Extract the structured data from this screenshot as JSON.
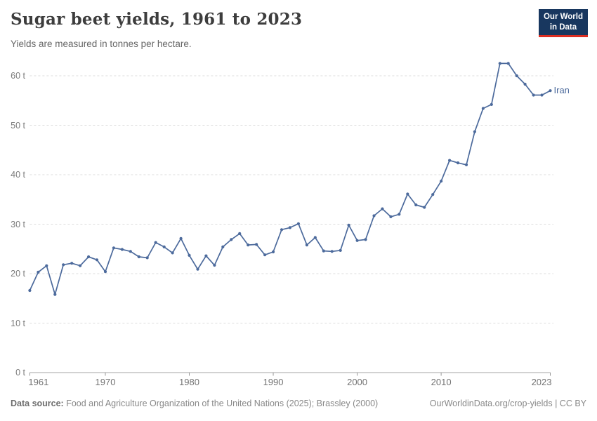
{
  "header": {
    "title": "Sugar beet yields, 1961 to 2023",
    "subtitle": "Yields are measured in tonnes per hectare.",
    "logo_line1": "Our World",
    "logo_line2": "in Data"
  },
  "chart_data": {
    "type": "line",
    "title": "Sugar beet yields, 1961 to 2023",
    "ylabel": "tonnes per hectare",
    "xlabel": "",
    "xlim": [
      1961,
      2023
    ],
    "ylim": [
      0,
      60
    ],
    "grid": "horizontal-dashed",
    "legend": "end-of-line-label",
    "x_ticks": [
      {
        "v": 1961,
        "label": "1961"
      },
      {
        "v": 1970,
        "label": "1970"
      },
      {
        "v": 1980,
        "label": "1980"
      },
      {
        "v": 1990,
        "label": "1990"
      },
      {
        "v": 2000,
        "label": "2000"
      },
      {
        "v": 2010,
        "label": "2010"
      },
      {
        "v": 2023,
        "label": "2023"
      }
    ],
    "y_ticks": [
      {
        "v": 0,
        "label": "0 t"
      },
      {
        "v": 10,
        "label": "10 t"
      },
      {
        "v": 20,
        "label": "20 t"
      },
      {
        "v": 30,
        "label": "30 t"
      },
      {
        "v": 40,
        "label": "40 t"
      },
      {
        "v": 50,
        "label": "50 t"
      },
      {
        "v": 60,
        "label": "60 t"
      }
    ],
    "series": [
      {
        "name": "Iran",
        "color": "#4C6A9C",
        "x": [
          1961,
          1962,
          1963,
          1964,
          1965,
          1966,
          1967,
          1968,
          1969,
          1970,
          1971,
          1972,
          1973,
          1974,
          1975,
          1976,
          1977,
          1978,
          1979,
          1980,
          1981,
          1982,
          1983,
          1984,
          1985,
          1986,
          1987,
          1988,
          1989,
          1990,
          1991,
          1992,
          1993,
          1994,
          1995,
          1996,
          1997,
          1998,
          1999,
          2000,
          2001,
          2002,
          2003,
          2004,
          2005,
          2006,
          2007,
          2008,
          2009,
          2010,
          2011,
          2012,
          2013,
          2014,
          2015,
          2016,
          2017,
          2018,
          2019,
          2020,
          2021,
          2022,
          2023
        ],
        "values": [
          16.6,
          20.3,
          21.6,
          15.8,
          21.8,
          22.1,
          21.6,
          23.4,
          22.8,
          20.4,
          25.2,
          24.9,
          24.5,
          23.4,
          23.2,
          26.3,
          25.4,
          24.2,
          27.1,
          23.7,
          20.9,
          23.6,
          21.7,
          25.4,
          26.9,
          28.1,
          25.8,
          25.9,
          23.8,
          24.4,
          28.9,
          29.3,
          30.1,
          25.8,
          27.3,
          24.6,
          24.5,
          24.7,
          29.8,
          26.7,
          26.9,
          31.7,
          33.1,
          31.5,
          32.0,
          36.1,
          33.9,
          33.4,
          36.0,
          38.7,
          42.9,
          42.4,
          42.0,
          48.7,
          53.4,
          54.2,
          62.5,
          62.5,
          60.0,
          58.3,
          56.1,
          56.1,
          57.0
        ]
      }
    ]
  },
  "footer": {
    "datasource_label": "Data source:",
    "datasource_text": "Food and Agriculture Organization of the United Nations (2025); Brassley (2000)",
    "separator": " | ",
    "link": "OurWorldinData.org/crop-yields",
    "license": "CC BY"
  },
  "colors": {
    "line": "#4C6A9C",
    "grid": "#dcdcdc",
    "axis": "#a5a5a5",
    "tick": "#999999",
    "logo_bg": "#18375f",
    "logo_red": "#dc2e22",
    "title_text": "#3d3d3d",
    "subtitle_text": "#666666",
    "footer_text": "#888888"
  }
}
